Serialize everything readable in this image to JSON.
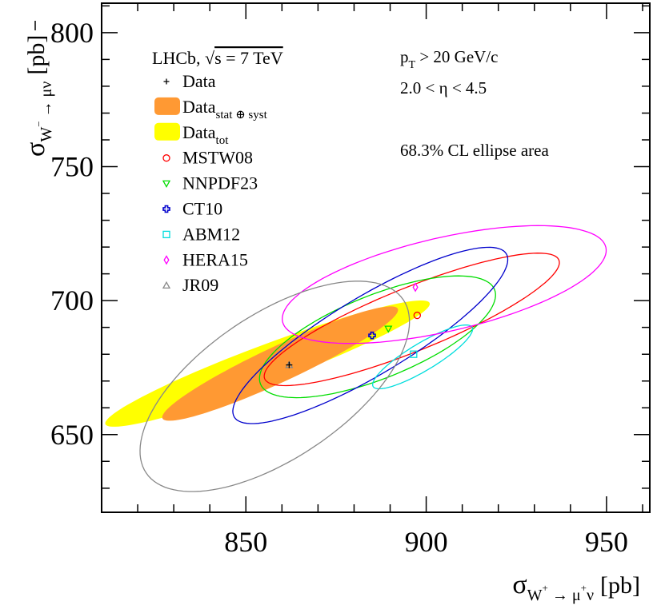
{
  "chart_data": {
    "type": "scatter",
    "title": "",
    "xlabel": {
      "sym": "σ",
      "sub_a": "W",
      "sup_a": "+",
      "sub_b": " → μ",
      "sup_b": "+",
      "sub_c": "ν",
      "unit": "[pb]"
    },
    "ylabel": {
      "sym": "σ",
      "sub_a": "W",
      "sup_a": "−",
      "sub_b": " → μ",
      "sub_c": "ν",
      "unit": "[pb]"
    },
    "xlim": [
      810,
      962
    ],
    "ylim": [
      621,
      811
    ],
    "xticks": [
      850,
      900,
      950
    ],
    "yticks": [
      650,
      700,
      750,
      800
    ],
    "grid": false,
    "legend_placement": "top-left",
    "legend": {
      "experiment_text": "LHCb, ",
      "energy_text": "s = 7 TeV",
      "entries": [
        {
          "kind": "data",
          "label": "Data"
        },
        {
          "kind": "statsyst",
          "label": "Data",
          "sub": "stat ⊕ syst"
        },
        {
          "kind": "tot",
          "label": "Data",
          "sub": "tot"
        },
        {
          "kind": "model",
          "series": 0,
          "label": "MSTW08"
        },
        {
          "kind": "model",
          "series": 1,
          "label": "NNPDF23"
        },
        {
          "kind": "model",
          "series": 2,
          "label": "CT10"
        },
        {
          "kind": "model",
          "series": 3,
          "label": "ABM12"
        },
        {
          "kind": "model",
          "series": 4,
          "label": "HERA15"
        },
        {
          "kind": "model",
          "series": 5,
          "label": "JR09"
        }
      ]
    },
    "annotations": {
      "pt_cut": {
        "pre": "p",
        "sub": "T",
        "post": " > 20 GeV/c"
      },
      "eta_range": "2.0 < η < 4.5",
      "ellipse_note": "68.3% CL ellipse area"
    },
    "data_point": {
      "x": 862,
      "y": 676
    },
    "data_ellipses": [
      {
        "name": "Data_tot",
        "color": "#ffff00",
        "cx": 856,
        "cy": 676.5,
        "a": 48,
        "b": 5.3,
        "angle_deg": 20.5
      },
      {
        "name": "Data_stat_syst",
        "color": "#ff9933",
        "cx": 859.5,
        "cy": 676.5,
        "a": 36,
        "b": 5.0,
        "angle_deg": 25
      }
    ],
    "series": [
      {
        "name": "MSTW08",
        "marker": "circle",
        "color": "#ff0000",
        "x": 897.5,
        "y": 694.5,
        "ellipse": {
          "cx": 896,
          "cy": 693,
          "a": 44,
          "b": 8.8,
          "angle_deg": 22
        }
      },
      {
        "name": "NNPDF23",
        "marker": "triangle-down",
        "color": "#00dd00",
        "x": 889.5,
        "y": 689.5,
        "ellipse": {
          "cx": 886.5,
          "cy": 686.5,
          "a": 35,
          "b": 11.5,
          "angle_deg": 22
        }
      },
      {
        "name": "CT10",
        "marker": "cross-open",
        "color": "#0000cc",
        "x": 885,
        "y": 687,
        "ellipse": {
          "cx": 884.5,
          "cy": 687,
          "a": 44,
          "b": 10.8,
          "angle_deg": 31
        }
      },
      {
        "name": "ABM12",
        "marker": "square-open",
        "color": "#00dddd",
        "x": 896.5,
        "y": 680,
        "ellipse": {
          "cx": 899,
          "cy": 679,
          "a": 16,
          "b": 3.8,
          "angle_deg": 31
        }
      },
      {
        "name": "HERA15",
        "marker": "diamond-open",
        "color": "#ff00ff",
        "x": 897,
        "y": 705,
        "ellipse": {
          "cx": 905,
          "cy": 706,
          "a": 46,
          "b": 13,
          "angle_deg": 13
        }
      },
      {
        "name": "JR09",
        "marker": "triangle-up",
        "color": "#888888",
        "x": 862,
        "y": 676,
        "ellipse": {
          "cx": 858,
          "cy": 668,
          "a": 43,
          "b": 20,
          "angle_deg": 34
        }
      }
    ]
  }
}
